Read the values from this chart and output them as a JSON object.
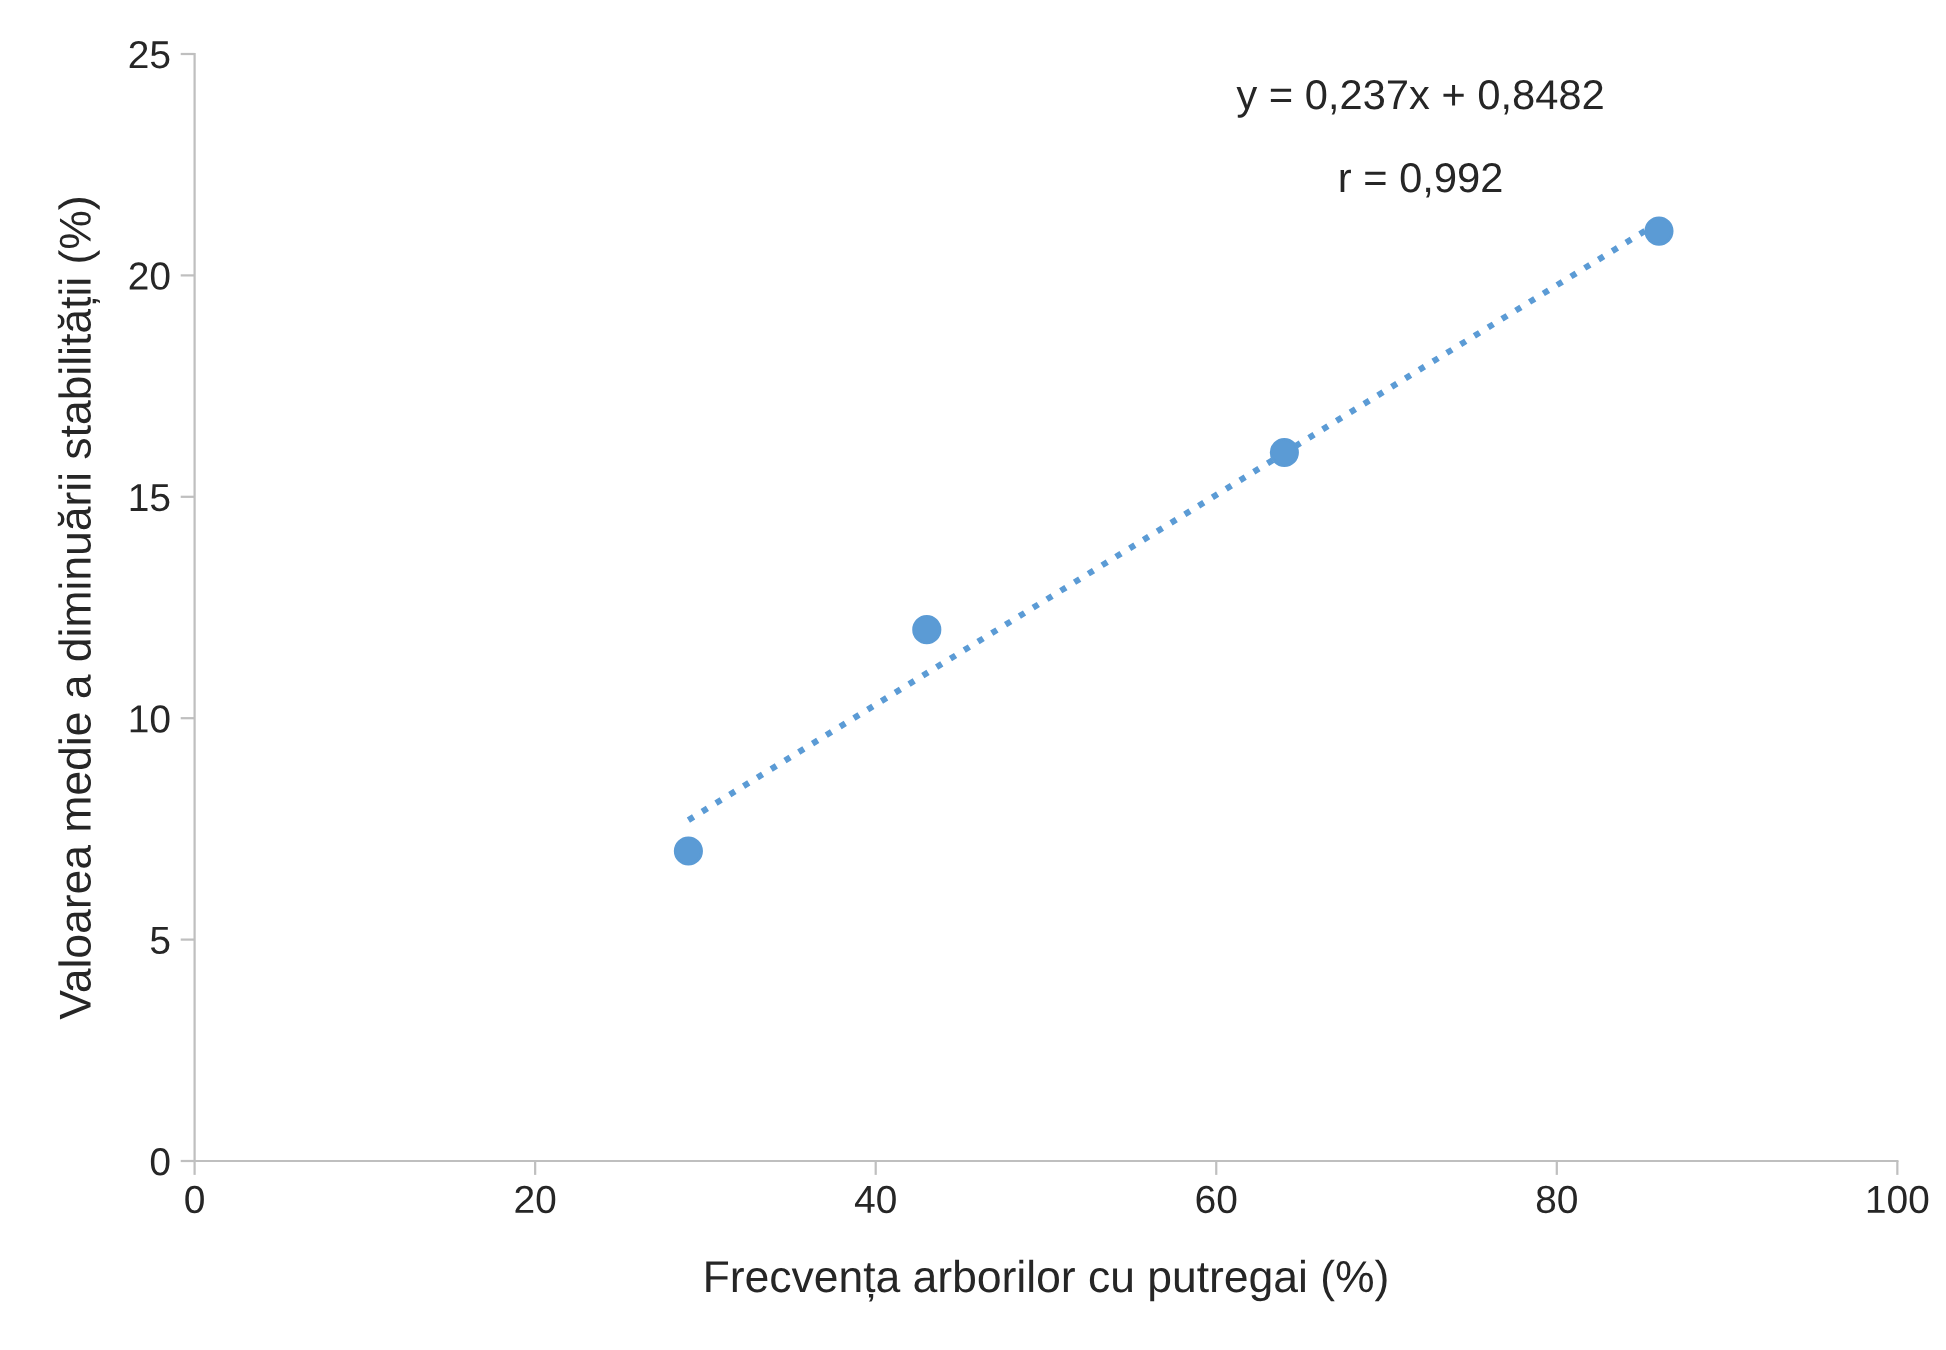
{
  "chart_data": {
    "type": "scatter",
    "xlabel": "Frecvența arborilor cu putregai (%)",
    "ylabel": "Valoarea medie a diminuării stabilității (%)",
    "series": [
      {
        "color": "#5b9bd5",
        "x": [
          29,
          43,
          64,
          86
        ],
        "values": [
          7,
          12,
          16,
          21
        ],
        "marker": "circle"
      },
      {
        "type": "line",
        "color": "#5b9bd5",
        "x": [
          29,
          86
        ],
        "values": [
          7.7,
          21.2
        ],
        "marker": "none",
        "line_style": "dotted"
      }
    ],
    "annotations": [
      "y = 0,237x + 0,8482",
      "r = 0,992"
    ],
    "xlim": [
      0,
      100
    ],
    "xticks": [
      0,
      20,
      40,
      60,
      80,
      100
    ],
    "ylim": [
      0,
      25
    ],
    "yticks": [
      0,
      5,
      10,
      15,
      20,
      25
    ],
    "grid": false,
    "legend": false
  }
}
